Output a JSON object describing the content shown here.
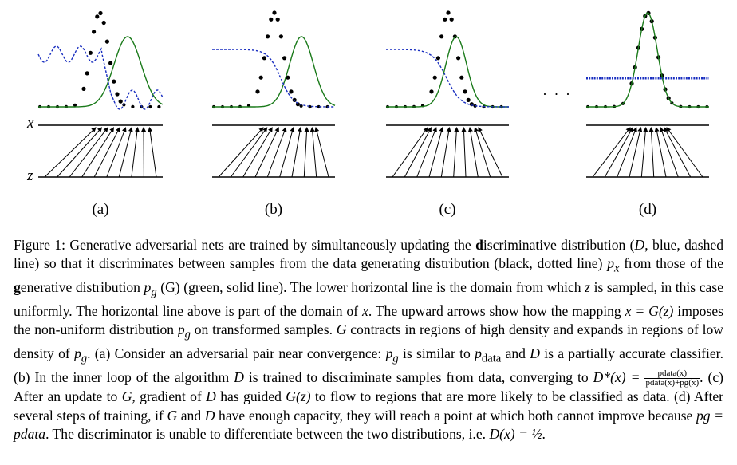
{
  "figure": {
    "panels": [
      {
        "label": "(a)"
      },
      {
        "label": "(b)"
      },
      {
        "label": "(c)"
      },
      {
        "label": "(d)"
      }
    ],
    "x_axis_label": "x",
    "z_axis_label": "z",
    "ellipsis": "· · ·",
    "colors": {
      "data_dist": "#000000",
      "generator_dist": "#1a7a1a",
      "discriminator": "#1a2fc0",
      "arrows": "#000000"
    }
  },
  "caption": {
    "s1": "Figure 1: Generative adversarial nets are trained by simultaneously updating the ",
    "s1b": "d",
    "s1c": "iscriminative distribution (",
    "D": "D",
    "s2": ", blue, dashed line) so that it discriminates between samples from the data generating distribution (black, dotted line) ",
    "px": "p",
    "px_sub": "x",
    "s3": " from those of the ",
    "s3b": "g",
    "s3c": "enerative distribution ",
    "pg": "p",
    "pg_sub": "g",
    "s4": " (G) (green, solid line). The lower horizontal line is the domain from which ",
    "z": "z",
    "s5": " is sampled, in this case uniformly. The horizontal line above is part of the domain of ",
    "x": "x",
    "s6": ". The upward arrows show how the mapping ",
    "map": "x = G(z)",
    "s7": " imposes the non-uniform distribution ",
    "s8": " on transformed samples. ",
    "G": "G",
    "s9": " contracts in regions of high density and expands in regions of low density of ",
    "s10": ". (a) Consider an adversarial pair near convergence: ",
    "s11": " is similar to ",
    "pdata": "p",
    "pdata_sub": "data",
    "s12": " and ",
    "s13": " is a partially accurate classifier. (b) In the inner loop of the algorithm ",
    "s14": " is trained to discriminate samples from data, converging to ",
    "dstar": "D*(x) =",
    "frac_num": "pdata(x)",
    "frac_den": "pdata(x)+pg(x)",
    "s15": ". (c) After an update to ",
    "s16": ", gradient of ",
    "s17": " has guided ",
    "Gz": "G(z)",
    "s18": " to flow to regions that are more likely to be classified as data. (d) After several steps of training, if ",
    "s19": " and ",
    "s20": " have enough capacity, they will reach a point at which both cannot improve because ",
    "eq": "pg = pdata",
    "s21": ". The discriminator is unable to differentiate between the two distributions, i.e. ",
    "final": "D(x) = ½",
    "s22": "."
  }
}
